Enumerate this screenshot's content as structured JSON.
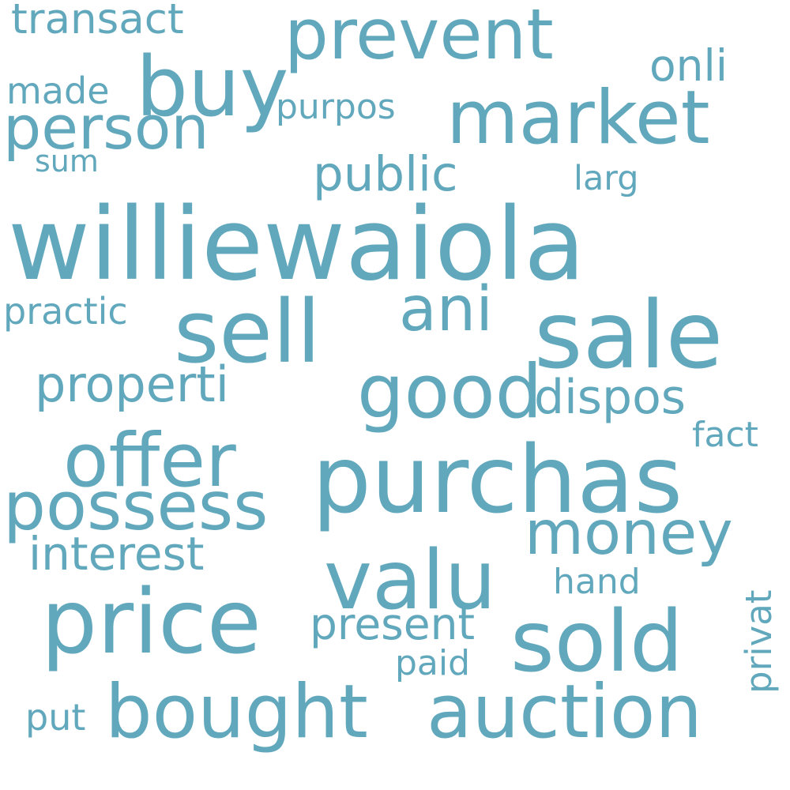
{
  "colors": {
    "background": "#ffffff",
    "word": "#62a8bd"
  },
  "words": {
    "williewaiola": "williewaiola",
    "sale": "sale",
    "purchas": "purchas",
    "sell": "sell",
    "price": "price",
    "bought": "bought",
    "auction": "auction",
    "sold": "sold",
    "valu": "valu",
    "market": "market",
    "prevent": "prevent",
    "buy": "buy",
    "person": "person",
    "offer": "offer",
    "possess": "possess",
    "money": "money",
    "good": "good",
    "ani": "ani",
    "properti": "properti",
    "dispos": "dispos",
    "public": "public",
    "interest": "interest",
    "present": "present",
    "transact": "transact",
    "onli": "onli",
    "made": "made",
    "purpos": "purpos",
    "practic": "practic",
    "larg": "larg",
    "sum": "sum",
    "fact": "fact",
    "hand": "hand",
    "paid": "paid",
    "put": "put",
    "privat": "privat"
  }
}
